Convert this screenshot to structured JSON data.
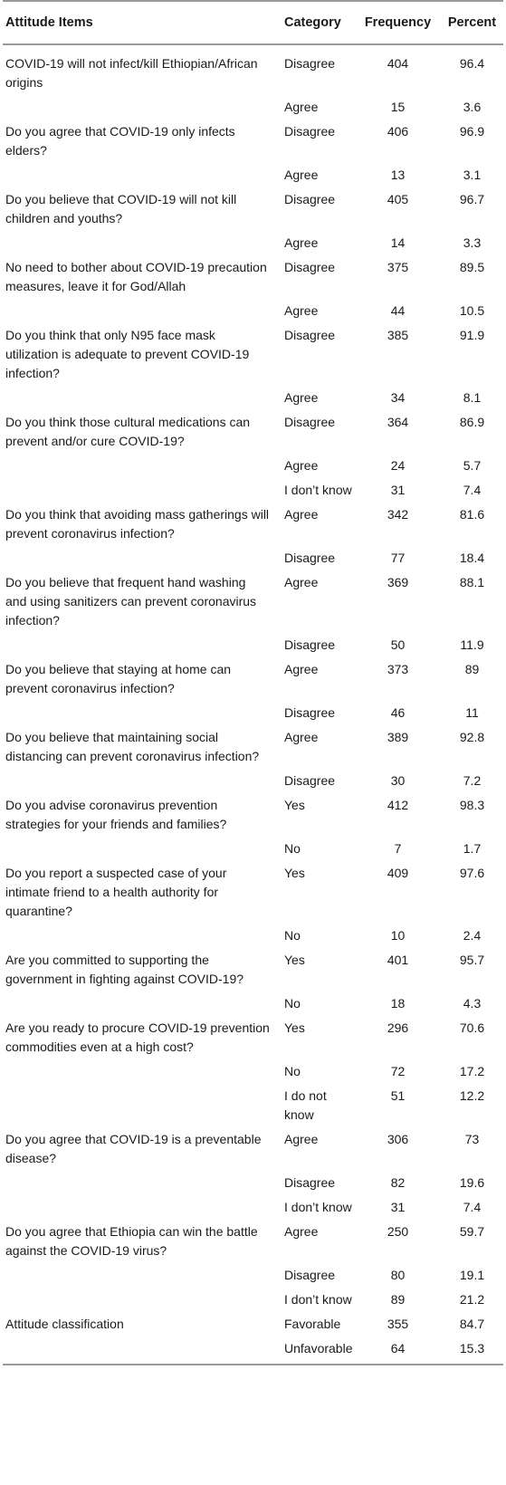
{
  "table": {
    "headers": {
      "item": "Attitude Items",
      "category": "Category",
      "frequency": "Frequency",
      "percent": "Percent"
    },
    "rows": [
      {
        "item": "COVID-19 will not infect/kill Ethiopian/African origins",
        "category": "Disagree",
        "frequency": "404",
        "percent": "96.4"
      },
      {
        "item": "",
        "category": "Agree",
        "frequency": "15",
        "percent": "3.6"
      },
      {
        "item": "Do you agree that COVID-19 only infects elders?",
        "category": "Disagree",
        "frequency": "406",
        "percent": "96.9"
      },
      {
        "item": "",
        "category": "Agree",
        "frequency": "13",
        "percent": "3.1"
      },
      {
        "item": "Do you believe that COVID-19 will not kill children and youths?",
        "category": "Disagree",
        "frequency": "405",
        "percent": "96.7"
      },
      {
        "item": "",
        "category": "Agree",
        "frequency": "14",
        "percent": "3.3"
      },
      {
        "item": "No need to bother about COVID-19 precaution measures, leave it for God/Allah",
        "category": "Disagree",
        "frequency": "375",
        "percent": "89.5"
      },
      {
        "item": "",
        "category": "Agree",
        "frequency": "44",
        "percent": "10.5"
      },
      {
        "item": "Do you think that only N95 face mask utilization is adequate to prevent COVID-19 infection?",
        "category": "Disagree",
        "frequency": "385",
        "percent": "91.9"
      },
      {
        "item": "",
        "category": "Agree",
        "frequency": "34",
        "percent": "8.1"
      },
      {
        "item": "Do you think those cultural medications can prevent and/or cure COVID-19?",
        "category": "Disagree",
        "frequency": "364",
        "percent": "86.9"
      },
      {
        "item": "",
        "category": "Agree",
        "frequency": "24",
        "percent": "5.7"
      },
      {
        "item": "",
        "category": "I don’t know",
        "frequency": "31",
        "percent": "7.4"
      },
      {
        "item": "Do you think that avoiding mass gatherings will prevent coronavirus infection?",
        "category": "Agree",
        "frequency": "342",
        "percent": "81.6"
      },
      {
        "item": "",
        "category": "Disagree",
        "frequency": "77",
        "percent": "18.4"
      },
      {
        "item": "Do you believe that frequent hand washing and using sanitizers can prevent coronavirus infection?",
        "category": "Agree",
        "frequency": "369",
        "percent": "88.1"
      },
      {
        "item": "",
        "category": "Disagree",
        "frequency": "50",
        "percent": "11.9"
      },
      {
        "item": "Do you believe that staying at home can prevent coronavirus infection?",
        "category": "Agree",
        "frequency": "373",
        "percent": "89"
      },
      {
        "item": "",
        "category": "Disagree",
        "frequency": "46",
        "percent": "11"
      },
      {
        "item": "Do you believe that maintaining social distancing can prevent coronavirus infection?",
        "category": "Agree",
        "frequency": "389",
        "percent": "92.8"
      },
      {
        "item": "",
        "category": "Disagree",
        "frequency": "30",
        "percent": "7.2"
      },
      {
        "item": "Do you advise coronavirus prevention strategies for your friends and families?",
        "category": "Yes",
        "frequency": "412",
        "percent": "98.3"
      },
      {
        "item": "",
        "category": "No",
        "frequency": "7",
        "percent": "1.7"
      },
      {
        "item": "Do you report a suspected case of your intimate friend to a health authority for quarantine?",
        "category": "Yes",
        "frequency": "409",
        "percent": "97.6"
      },
      {
        "item": "",
        "category": "No",
        "frequency": "10",
        "percent": "2.4"
      },
      {
        "item": "Are you committed to supporting the government in fighting against COVID-19?",
        "category": "Yes",
        "frequency": "401",
        "percent": "95.7"
      },
      {
        "item": "",
        "category": "No",
        "frequency": "18",
        "percent": "4.3"
      },
      {
        "item": "Are you ready to procure COVID-19 prevention commodities even at a high cost?",
        "category": "Yes",
        "frequency": "296",
        "percent": "70.6"
      },
      {
        "item": "",
        "category": "No",
        "frequency": "72",
        "percent": "17.2"
      },
      {
        "item": "",
        "category": "I do not know",
        "frequency": "51",
        "percent": "12.2"
      },
      {
        "item": "Do you agree that COVID-19 is a preventable disease?",
        "category": "Agree",
        "frequency": "306",
        "percent": "73"
      },
      {
        "item": "",
        "category": "Disagree",
        "frequency": "82",
        "percent": "19.6"
      },
      {
        "item": "",
        "category": "I don’t know",
        "frequency": "31",
        "percent": "7.4"
      },
      {
        "item": "Do you agree that Ethiopia can win the battle against the COVID-19 virus?",
        "category": "Agree",
        "frequency": "250",
        "percent": "59.7"
      },
      {
        "item": "",
        "category": "Disagree",
        "frequency": "80",
        "percent": "19.1"
      },
      {
        "item": "",
        "category": "I don’t know",
        "frequency": "89",
        "percent": "21.2"
      },
      {
        "item": "Attitude classification",
        "category": "Favorable",
        "frequency": "355",
        "percent": "84.7"
      },
      {
        "item": "",
        "category": "Unfavorable",
        "frequency": "64",
        "percent": "15.3"
      }
    ]
  }
}
